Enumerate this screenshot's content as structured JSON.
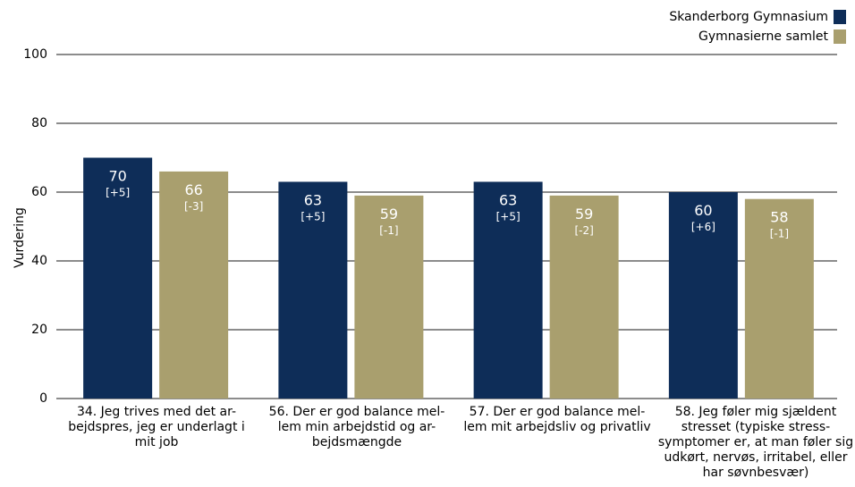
{
  "chart_data": {
    "type": "bar",
    "ylabel": "Vurdering",
    "ylim": [
      0,
      100
    ],
    "yticks": [
      "0",
      "20",
      "40",
      "60",
      "80",
      "100"
    ],
    "grid": true,
    "legend_position": "top-right",
    "categories": [
      "34. Jeg trives med det ar-bejdspres, jeg er underlagt i mit job",
      "56. Der er god balance mel-lem min arbejdstid og ar-bejdsmængde",
      "57. Der er god balance mel-lem mit arbejdsliv og privatliv",
      "58. Jeg føler mig sjældent stresset (typiske stress-symptomer er, at man føler sig udkørt, nervøs, irritabel, eller har søvnbesvær)"
    ],
    "series": [
      {
        "name": "Skanderborg Gymnasium",
        "color": "#0e2d58",
        "values": [
          70,
          63,
          63,
          60
        ],
        "value_labels": [
          "70",
          "63",
          "63",
          "60"
        ],
        "change_labels": [
          "[+5]",
          "[+5]",
          "[+5]",
          "[+6]"
        ]
      },
      {
        "name": "Gymnasierne samlet",
        "color": "#a99f6e",
        "values": [
          66,
          59,
          59,
          58
        ],
        "value_labels": [
          "66",
          "59",
          "59",
          "58"
        ],
        "change_labels": [
          "[-3]",
          "[-1]",
          "[-2]",
          "[-1]"
        ]
      }
    ]
  }
}
